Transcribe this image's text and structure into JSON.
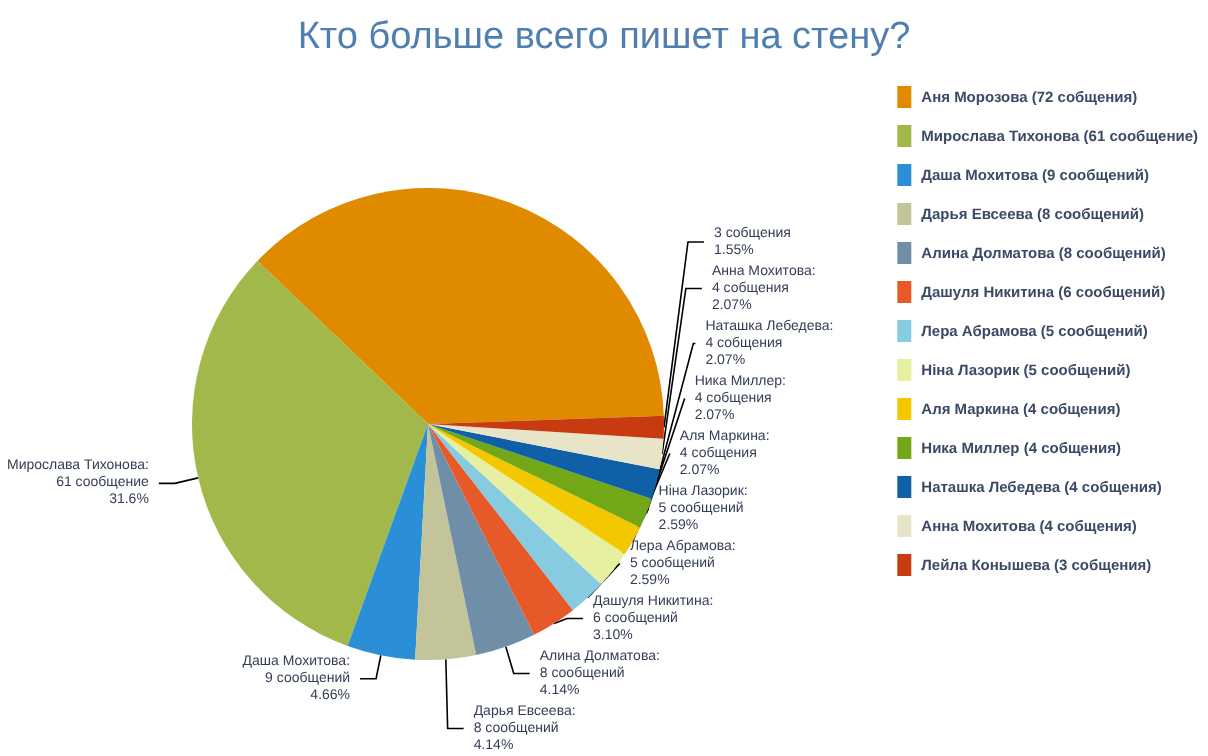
{
  "chart_data": {
    "type": "pie",
    "title": "Кто больше всего пишет на стену?",
    "categories": [
      "Аня Морозова (72 собщения)",
      "Мирослава Тихонова (61 сообщение)",
      "Даша Мохитова (9 сообщений)",
      "Дарья Евсеева (8 сообщений)",
      "Алина Долматова (8 сообщений)",
      "Дашуля Никитина (6 сообщений)",
      "Лера Абрамова (5 сообщений)",
      "Ніна Лазорик (5 сообщений)",
      "Аля Маркина (4 собщения)",
      "Ника Миллер (4 собщения)",
      "Наташка Лебедева (4 собщения)",
      "Анна Мохитова (4 собщения)",
      "Лейла Конышева (3 собщения)"
    ],
    "values": [
      72,
      61,
      9,
      8,
      8,
      6,
      5,
      5,
      4,
      4,
      4,
      4,
      3
    ],
    "colors": [
      "#e08a00",
      "#a2b84a",
      "#2a8fd6",
      "#c4c49a",
      "#6f8fa8",
      "#e8592a",
      "#86cbe0",
      "#e6f0a0",
      "#f4c800",
      "#72a818",
      "#1060a8",
      "#e8e4c8",
      "#c83a10"
    ],
    "value_labels": [
      null,
      "Мирослава Тихонова:\n61 сообщение\n31.6%",
      "Даша Мохитова:\n9 сообщений\n4.66%",
      "Дарья Евсеева:\n8 сообщений\n4.14%",
      "Алина Долматова:\n8 сообщений\n4.14%",
      "Дашуля Никитина:\n6 сообщений\n3.10%",
      "Лера Абрамова:\n5 сообщений\n2.59%",
      "Ніна Лазорик:\n5 сообщений\n2.59%",
      "Аля Маркина:\n4 собщения\n2.07%",
      "Ника Миллер:\n4 собщения\n2.07%",
      "Наташка Лебедева:\n4 собщения\n2.07%",
      "Анна Мохитова:\n4 собщения\n2.07%",
      "3 собщения\n1.55%"
    ],
    "legend": "right"
  }
}
